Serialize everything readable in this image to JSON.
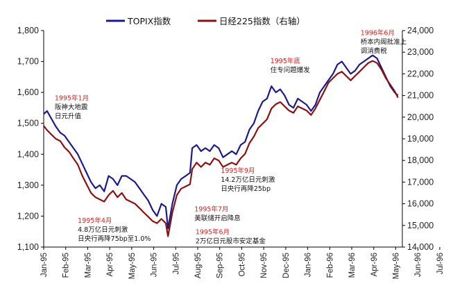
{
  "chart_data": {
    "type": "line",
    "legend": {
      "placement": "top-center",
      "entries": [
        "TOPIX指数",
        "日经225指数（右轴）"
      ]
    },
    "series": [
      {
        "name": "TOPIX指数",
        "axis": "left",
        "color": "#1a1a8c",
        "points": [
          [
            0.0,
            1530
          ],
          [
            0.15,
            1540
          ],
          [
            0.35,
            1515
          ],
          [
            0.55,
            1490
          ],
          [
            0.75,
            1470
          ],
          [
            0.95,
            1460
          ],
          [
            1.15,
            1440
          ],
          [
            1.35,
            1420
          ],
          [
            1.55,
            1400
          ],
          [
            1.75,
            1370
          ],
          [
            1.95,
            1340
          ],
          [
            2.15,
            1310
          ],
          [
            2.35,
            1290
          ],
          [
            2.55,
            1300
          ],
          [
            2.75,
            1280
          ],
          [
            2.95,
            1330
          ],
          [
            3.15,
            1320
          ],
          [
            3.35,
            1300
          ],
          [
            3.55,
            1330
          ],
          [
            3.75,
            1330
          ],
          [
            3.95,
            1320
          ],
          [
            4.15,
            1310
          ],
          [
            4.35,
            1290
          ],
          [
            4.55,
            1270
          ],
          [
            4.75,
            1250
          ],
          [
            4.95,
            1220
          ],
          [
            5.15,
            1200
          ],
          [
            5.35,
            1240
          ],
          [
            5.55,
            1230
          ],
          [
            5.65,
            1160
          ],
          [
            5.85,
            1240
          ],
          [
            6.05,
            1300
          ],
          [
            6.25,
            1320
          ],
          [
            6.45,
            1330
          ],
          [
            6.65,
            1340
          ],
          [
            6.75,
            1420
          ],
          [
            6.95,
            1430
          ],
          [
            7.15,
            1410
          ],
          [
            7.35,
            1420
          ],
          [
            7.55,
            1410
          ],
          [
            7.75,
            1430
          ],
          [
            7.95,
            1420
          ],
          [
            8.15,
            1390
          ],
          [
            8.35,
            1400
          ],
          [
            8.55,
            1410
          ],
          [
            8.75,
            1400
          ],
          [
            8.95,
            1430
          ],
          [
            9.15,
            1440
          ],
          [
            9.35,
            1480
          ],
          [
            9.55,
            1500
          ],
          [
            9.75,
            1540
          ],
          [
            9.95,
            1570
          ],
          [
            10.15,
            1580
          ],
          [
            10.35,
            1620
          ],
          [
            10.55,
            1600
          ],
          [
            10.75,
            1610
          ],
          [
            10.95,
            1590
          ],
          [
            11.15,
            1560
          ],
          [
            11.35,
            1550
          ],
          [
            11.55,
            1580
          ],
          [
            11.75,
            1570
          ],
          [
            11.95,
            1560
          ],
          [
            12.15,
            1540
          ],
          [
            12.35,
            1560
          ],
          [
            12.55,
            1600
          ],
          [
            12.75,
            1620
          ],
          [
            12.95,
            1640
          ],
          [
            13.15,
            1660
          ],
          [
            13.35,
            1690
          ],
          [
            13.55,
            1700
          ],
          [
            13.75,
            1680
          ],
          [
            13.95,
            1660
          ],
          [
            14.15,
            1670
          ],
          [
            14.35,
            1690
          ],
          [
            14.55,
            1700
          ],
          [
            14.75,
            1710
          ],
          [
            14.95,
            1720
          ],
          [
            15.15,
            1710
          ],
          [
            15.35,
            1680
          ],
          [
            15.55,
            1650
          ],
          [
            15.75,
            1620
          ],
          [
            15.95,
            1600
          ],
          [
            16.1,
            1590
          ]
        ]
      },
      {
        "name": "日经225指数（右轴）",
        "axis": "right",
        "color": "#8b1010",
        "points": [
          [
            0.0,
            19600
          ],
          [
            0.15,
            19400
          ],
          [
            0.35,
            19200
          ],
          [
            0.55,
            19000
          ],
          [
            0.75,
            18900
          ],
          [
            0.95,
            18600
          ],
          [
            1.15,
            18400
          ],
          [
            1.35,
            18100
          ],
          [
            1.55,
            17800
          ],
          [
            1.75,
            17300
          ],
          [
            1.95,
            16900
          ],
          [
            2.15,
            16500
          ],
          [
            2.35,
            16300
          ],
          [
            2.55,
            16200
          ],
          [
            2.75,
            16100
          ],
          [
            2.95,
            16400
          ],
          [
            3.15,
            16600
          ],
          [
            3.35,
            16300
          ],
          [
            3.55,
            16500
          ],
          [
            3.75,
            16200
          ],
          [
            3.95,
            16100
          ],
          [
            4.15,
            16000
          ],
          [
            4.35,
            15800
          ],
          [
            4.55,
            15600
          ],
          [
            4.75,
            15400
          ],
          [
            4.95,
            15200
          ],
          [
            5.15,
            15100
          ],
          [
            5.35,
            15300
          ],
          [
            5.55,
            15100
          ],
          [
            5.65,
            14500
          ],
          [
            5.85,
            15600
          ],
          [
            6.05,
            16400
          ],
          [
            6.25,
            16700
          ],
          [
            6.45,
            16800
          ],
          [
            6.65,
            16900
          ],
          [
            6.75,
            17600
          ],
          [
            6.95,
            17900
          ],
          [
            7.15,
            17700
          ],
          [
            7.35,
            17900
          ],
          [
            7.55,
            17800
          ],
          [
            7.75,
            18100
          ],
          [
            7.95,
            18000
          ],
          [
            8.15,
            17700
          ],
          [
            8.35,
            17800
          ],
          [
            8.55,
            17900
          ],
          [
            8.75,
            17800
          ],
          [
            8.95,
            18100
          ],
          [
            9.15,
            18300
          ],
          [
            9.35,
            18800
          ],
          [
            9.55,
            19100
          ],
          [
            9.75,
            19500
          ],
          [
            9.95,
            19700
          ],
          [
            10.15,
            19900
          ],
          [
            10.35,
            20400
          ],
          [
            10.55,
            20600
          ],
          [
            10.75,
            20700
          ],
          [
            10.95,
            20500
          ],
          [
            11.15,
            20300
          ],
          [
            11.35,
            20200
          ],
          [
            11.55,
            20500
          ],
          [
            11.75,
            20400
          ],
          [
            11.95,
            20300
          ],
          [
            12.15,
            20100
          ],
          [
            12.35,
            20400
          ],
          [
            12.55,
            20800
          ],
          [
            12.75,
            21200
          ],
          [
            12.95,
            21600
          ],
          [
            13.15,
            21800
          ],
          [
            13.35,
            22000
          ],
          [
            13.55,
            22100
          ],
          [
            13.75,
            21900
          ],
          [
            13.95,
            21700
          ],
          [
            14.15,
            21900
          ],
          [
            14.35,
            22100
          ],
          [
            14.55,
            22300
          ],
          [
            14.75,
            22500
          ],
          [
            14.95,
            22600
          ],
          [
            15.15,
            22500
          ],
          [
            15.35,
            22200
          ],
          [
            15.55,
            21800
          ],
          [
            15.75,
            21500
          ],
          [
            15.95,
            21200
          ],
          [
            16.1,
            20900
          ]
        ]
      }
    ],
    "x": {
      "categories": [
        "Jan-95",
        "Feb-95",
        "Mar-95",
        "Apr-95",
        "May-95",
        "Jun-95",
        "Jul-95",
        "Aug-95",
        "Sep-95",
        "Oct-95",
        "Nov-95",
        "Dec-95",
        "Jan-96",
        "Feb-96",
        "Mar-96",
        "Apr-96",
        "May-96",
        "Jun-96",
        "Jul-96"
      ],
      "range": [
        0,
        16.3
      ]
    },
    "yleft": {
      "range": [
        1100,
        1800
      ],
      "ticks": [
        1100,
        1200,
        1300,
        1400,
        1500,
        1600,
        1700,
        1800
      ],
      "tick_labels": [
        "1,100",
        "1,200",
        "1,300",
        "1,400",
        "1,500",
        "1,600",
        "1,700",
        "1,800"
      ]
    },
    "yright": {
      "range": [
        14000,
        24000
      ],
      "ticks": [
        14000,
        15000,
        16000,
        17000,
        18000,
        19000,
        20000,
        21000,
        22000,
        23000,
        24000
      ],
      "tick_labels": [
        "14,000",
        "15,000",
        "16,000",
        "17,000",
        "18,000",
        "19,000",
        "20,000",
        "21,000",
        "22,000",
        "23,000",
        "24,000"
      ]
    },
    "grid": false,
    "annotations": [
      {
        "x": 0.5,
        "y": 1575,
        "lines": [
          {
            "text": "1995年1月",
            "color": "red"
          },
          {
            "text": "阪神大地震",
            "color": "black"
          },
          {
            "text": "日元升值",
            "color": "black"
          }
        ]
      },
      {
        "x": 1.55,
        "y": 1178,
        "lines": [
          {
            "text": "1995年4月",
            "color": "red"
          },
          {
            "text": "4.8万亿日元刺激",
            "color": "black"
          },
          {
            "text": "日央行再降75bp至1.0%",
            "color": "black"
          }
        ]
      },
      {
        "x": 6.85,
        "y": 1215,
        "lines": [
          {
            "text": "1995年7月",
            "color": "red"
          },
          {
            "text": "美联储开启降息",
            "color": "black"
          }
        ]
      },
      {
        "x": 6.9,
        "y": 1142,
        "lines": [
          {
            "text": "1995年6月",
            "color": "red"
          },
          {
            "text": "2万亿日元股市安定基金",
            "color": "black"
          }
        ]
      },
      {
        "x": 8.05,
        "y": 1340,
        "lines": [
          {
            "text": "1995年9月",
            "color": "red"
          },
          {
            "text": "14.2万亿日元刺激",
            "color": "black"
          },
          {
            "text": "日央行再降25bp",
            "color": "black"
          }
        ]
      },
      {
        "x": 10.3,
        "y": 1695,
        "lines": [
          {
            "text": "1995年底",
            "color": "red"
          },
          {
            "text": "住专问题爆发",
            "color": "black"
          }
        ]
      },
      {
        "x": 14.4,
        "y": 1785,
        "lines": [
          {
            "text": "1996年6月",
            "color": "red"
          },
          {
            "text": "桥本内阁批准上",
            "color": "black"
          },
          {
            "text": "调消费税",
            "color": "black"
          }
        ]
      }
    ]
  }
}
